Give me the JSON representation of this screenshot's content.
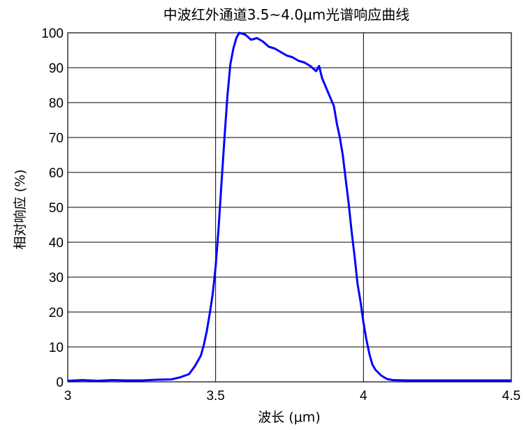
{
  "chart_data": {
    "type": "line",
    "title": "中波红外通道3.5~4.0μm光谱响应曲线",
    "xlabel": "波长 (μm)",
    "ylabel": "相对响应 (%)",
    "xlim": [
      3,
      4.5
    ],
    "ylim": [
      0,
      100
    ],
    "xticks": [
      3,
      3.5,
      4,
      4.5
    ],
    "xtick_labels": [
      "3",
      "3.5",
      "4",
      "4.5"
    ],
    "yticks": [
      0,
      10,
      20,
      30,
      40,
      50,
      60,
      70,
      80,
      90,
      100
    ],
    "ytick_labels": [
      "0",
      "10",
      "20",
      "30",
      "40",
      "50",
      "60",
      "70",
      "80",
      "90",
      "100"
    ],
    "grid": {
      "x": true,
      "y": true
    },
    "series": [
      {
        "color": "#0000ff",
        "x": [
          3.0,
          3.05,
          3.1,
          3.15,
          3.2,
          3.25,
          3.3,
          3.35,
          3.38,
          3.41,
          3.43,
          3.45,
          3.46,
          3.47,
          3.48,
          3.49,
          3.5,
          3.51,
          3.52,
          3.53,
          3.54,
          3.55,
          3.56,
          3.57,
          3.58,
          3.6,
          3.62,
          3.64,
          3.66,
          3.68,
          3.7,
          3.72,
          3.74,
          3.76,
          3.78,
          3.8,
          3.82,
          3.84,
          3.85,
          3.86,
          3.87,
          3.88,
          3.9,
          3.91,
          3.92,
          3.93,
          3.94,
          3.95,
          3.96,
          3.97,
          3.98,
          3.99,
          4.0,
          4.01,
          4.02,
          4.03,
          4.04,
          4.06,
          4.08,
          4.1,
          4.15,
          4.2,
          4.3,
          4.4,
          4.5
        ],
        "y": [
          0.3,
          0.5,
          0.3,
          0.5,
          0.4,
          0.4,
          0.6,
          0.7,
          1.3,
          2.2,
          4.5,
          7.5,
          10.5,
          14.5,
          19.5,
          25,
          33,
          44,
          57,
          70,
          82,
          91,
          95.5,
          98.5,
          100,
          99.5,
          98,
          98.5,
          97.5,
          96,
          95.5,
          94.5,
          93.5,
          93,
          92,
          91.5,
          90.5,
          89,
          90.5,
          87,
          85,
          83,
          79,
          74,
          70,
          65,
          58,
          51,
          43,
          36,
          28,
          23,
          17,
          12,
          8,
          5,
          3.5,
          1.8,
          0.8,
          0.5,
          0.4,
          0.4,
          0.4,
          0.4,
          0.4
        ]
      }
    ]
  }
}
